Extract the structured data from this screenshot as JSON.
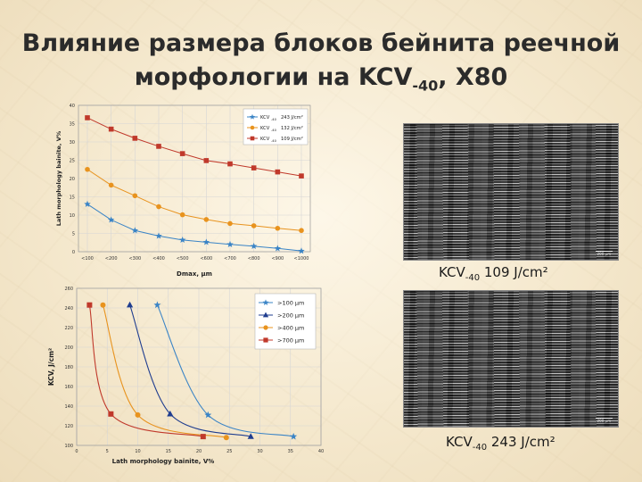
{
  "title": {
    "line1": "Влияние размера блоков бейнита реечной",
    "line2_main": "морфологии на KCV",
    "line2_sub": "-40",
    "line2_tail": ", X80"
  },
  "images": [
    {
      "caption_main": "KCV",
      "caption_sub": "-40",
      "caption_tail": " 109 J/cm²",
      "scale": "200 µm"
    },
    {
      "caption_main": "KCV",
      "caption_sub": "-40",
      "caption_tail": " 243 J/cm²",
      "scale": "200 µm"
    }
  ],
  "colors": {
    "blue": "#3a84c6",
    "orange": "#e8931e",
    "red": "#c0392b",
    "navy": "#1f3d8f"
  },
  "chart_data": [
    {
      "type": "line",
      "xlabel": "Dmax, µm",
      "ylabel": "Lath morphology bainite, V%",
      "categories": [
        "<100",
        "<200",
        "<300",
        "<400",
        "<500",
        "<600",
        "<700",
        "<800",
        "<900",
        "<1000"
      ],
      "ylim": [
        0,
        40
      ],
      "yticks": [
        "0",
        "5",
        "10",
        "15",
        "20",
        "25",
        "30",
        "35",
        "40"
      ],
      "legend_position": "top-right",
      "series": [
        {
          "name": "KCV-40 243 J/cm²",
          "label_main": "KCV",
          "label_sub": "-40",
          "label_val": "243 J/cm²",
          "color": "#3a84c6",
          "marker": "star",
          "values": [
            13,
            8.7,
            5.8,
            4.3,
            3.2,
            2.6,
            2.0,
            1.5,
            0.9,
            0.2
          ]
        },
        {
          "name": "KCV-40 132 J/cm²",
          "label_main": "KCV",
          "label_sub": "-40",
          "label_val": "132 J/cm²",
          "color": "#e8931e",
          "marker": "circle",
          "values": [
            22.5,
            18.2,
            15.3,
            12.3,
            10.1,
            8.8,
            7.7,
            7.1,
            6.4,
            5.8
          ]
        },
        {
          "name": "KCV-40 109 J/cm²",
          "label_main": "KCV",
          "label_sub": "-40",
          "label_val": "109 J/cm²",
          "color": "#c0392b",
          "marker": "square",
          "values": [
            36.6,
            33.5,
            31.0,
            28.8,
            26.8,
            24.9,
            24.0,
            22.9,
            21.8,
            20.7
          ]
        }
      ]
    },
    {
      "type": "line",
      "xlabel": "Lath morphology bainite, V%",
      "ylabel": "KCV, J/cm²",
      "xlim": [
        0,
        40
      ],
      "ylim": [
        100,
        260
      ],
      "xticks": [
        "0",
        "5",
        "10",
        "15",
        "20",
        "25",
        "30",
        "35",
        "40"
      ],
      "yticks": [
        "100",
        "120",
        "140",
        "160",
        "180",
        "200",
        "220",
        "240",
        "260"
      ],
      "legend_position": "top-right",
      "series": [
        {
          "name": ">100 µm",
          "color": "#3a84c6",
          "marker": "star",
          "points": [
            [
              13.2,
              243
            ],
            [
              21.5,
              131
            ],
            [
              35.5,
              109
            ]
          ]
        },
        {
          "name": ">200 µm",
          "color": "#1f3d8f",
          "marker": "triangle",
          "points": [
            [
              8.7,
              243
            ],
            [
              15.3,
              132
            ],
            [
              28.5,
              109
            ]
          ]
        },
        {
          "name": ">400 µm",
          "color": "#e8931e",
          "marker": "circle",
          "points": [
            [
              4.3,
              243
            ],
            [
              10.0,
              131
            ],
            [
              24.5,
              108
            ]
          ]
        },
        {
          "name": ">700 µm",
          "color": "#c0392b",
          "marker": "square",
          "points": [
            [
              2.1,
              243
            ],
            [
              5.6,
              132
            ],
            [
              20.7,
              109
            ]
          ]
        }
      ]
    }
  ]
}
